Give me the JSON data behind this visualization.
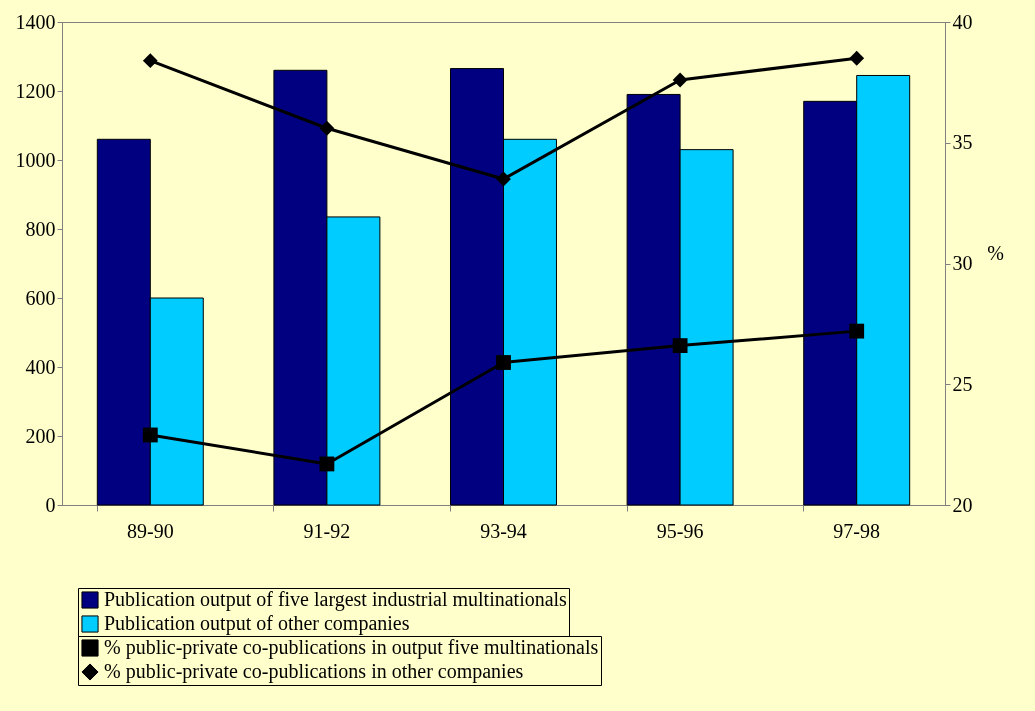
{
  "chart_data": {
    "type": "bar",
    "categories": [
      "89-90",
      "91-92",
      "93-94",
      "95-96",
      "97-98"
    ],
    "series": [
      {
        "name": "Publication output of five largest industrial multinationals",
        "type": "bar",
        "color": "#000080",
        "values": [
          1060,
          1260,
          1265,
          1190,
          1170
        ]
      },
      {
        "name": "Publication output of other companies",
        "type": "bar",
        "color": "#00ccff",
        "values": [
          600,
          835,
          1060,
          1030,
          1245
        ]
      },
      {
        "name": "% public-private co-publications in output five multinationals",
        "type": "line",
        "axis": "y2",
        "marker": "square",
        "color": "#000000",
        "values": [
          22.9,
          21.7,
          25.9,
          26.6,
          27.2
        ]
      },
      {
        "name": "% public-private co-publications in other companies",
        "type": "line",
        "axis": "y2",
        "marker": "diamond",
        "color": "#000000",
        "values": [
          38.4,
          35.6,
          33.5,
          37.6,
          38.5
        ]
      }
    ],
    "ylim": [
      0,
      1400
    ],
    "yticks": [
      0,
      200,
      400,
      600,
      800,
      1000,
      1200,
      1400
    ],
    "y2lim": [
      20,
      40
    ],
    "y2ticks": [
      20,
      25,
      30,
      35,
      40
    ],
    "y2label": "%",
    "legend": "bottom"
  }
}
